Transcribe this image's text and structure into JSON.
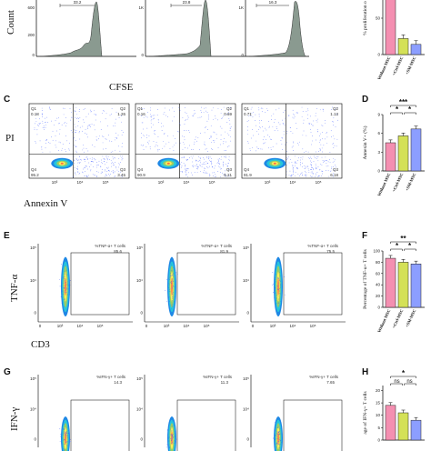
{
  "panels": {
    "C": "C",
    "D": "D",
    "E": "E",
    "F": "F",
    "G": "G",
    "H": "H"
  },
  "labels": {
    "count": "Count",
    "cfse": "CFSE",
    "pi": "PI",
    "annexin": "Annexin V",
    "tnf": "TNF-α",
    "cd3": "CD3",
    "ifn": "IFN-γ"
  },
  "histograms": [
    {
      "value": "33.2"
    },
    {
      "value": "23.8"
    },
    {
      "value": "16.3"
    }
  ],
  "quadrants": [
    {
      "q1": "Q1",
      "q1v": "0.18",
      "q2": "Q2",
      "q2v": "1.26",
      "q3": "Q3",
      "q3v": "3.45",
      "q4": "Q4",
      "q4v": "95.2"
    },
    {
      "q1": "Q1",
      "q1v": "0.16",
      "q2": "Q2",
      "q2v": "0.69",
      "q3": "Q3",
      "q3v": "5.21",
      "q4": "Q4",
      "q4v": "90.9"
    },
    {
      "q1": "Q1",
      "q1v": "0.71",
      "q2": "Q2",
      "q2v": "1.13",
      "q3": "Q3",
      "q3v": "6.18",
      "q4": "Q4",
      "q4v": "91.9"
    }
  ],
  "tnf_gates": [
    {
      "label": "%TNF-α+ T cells",
      "value": "85.6"
    },
    {
      "label": "%TNF-α+ T cells",
      "value": "81.9"
    },
    {
      "label": "%TNF-α+ T cells",
      "value": "75.5"
    }
  ],
  "ifn_gates": [
    {
      "label": "%IFN-γ+ T cells",
      "value": "14.3"
    },
    {
      "label": "%IFN-γ+ T cells",
      "value": "11.3"
    },
    {
      "label": "%IFN-γ+ T cells",
      "value": "7.65"
    }
  ],
  "colors": {
    "without": "#f48fb1",
    "ctrl": "#d4e157",
    "sm": "#8c9eff",
    "histogram": "#8a9a90"
  },
  "chart_data": [
    {
      "type": "bar",
      "categories": [
        "Without MSC",
        "+Ctrl-MSC",
        "+SM-MSC"
      ],
      "values": [
        80,
        22,
        14
      ],
      "ylabel": "% proliferation o",
      "ylim": [
        0,
        100
      ]
    },
    {
      "type": "bar",
      "categories": [
        "Without MSC",
        "+Ctrl-MSC",
        "+SM-MSC"
      ],
      "values": [
        4.5,
        5.6,
        6.7
      ],
      "ylabel": "Annexin V+ (%)",
      "ylim": [
        0,
        9
      ],
      "significance": [
        "***",
        "*",
        "*"
      ]
    },
    {
      "type": "bar",
      "categories": [
        "Without MSC",
        "+Ctrl-MSC",
        "+SM-MSC"
      ],
      "values": [
        87,
        80,
        77
      ],
      "ylabel": "Percentage of TNF-α+ T cells",
      "ylim": [
        0,
        100
      ],
      "significance": [
        "**",
        "*",
        "*"
      ]
    },
    {
      "type": "bar",
      "categories": [
        "Without MSC",
        "+Ctrl-MSC",
        "+SM-MSC"
      ],
      "values": [
        14,
        11,
        8
      ],
      "ylabel": "age of IFN-γ+ T cells",
      "ylim": [
        0,
        22
      ],
      "significance": [
        "*",
        "ns",
        "ns"
      ]
    }
  ]
}
